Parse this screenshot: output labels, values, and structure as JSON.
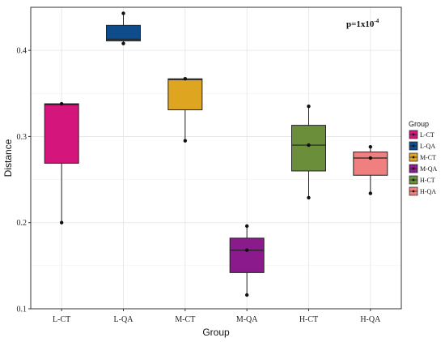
{
  "chart_data": {
    "type": "box",
    "xlabel": "Group",
    "ylabel": "Distance",
    "ylim": [
      0.1,
      0.45
    ],
    "yticks": [
      0.1,
      0.2,
      0.3,
      0.4
    ],
    "ytick_labels": [
      "0.1",
      "0.2",
      "0.3",
      "0.4"
    ],
    "grid": true,
    "legend": {
      "title": "Group",
      "position": "right"
    },
    "annotation": {
      "prefix": "p=1x10",
      "exponent": "-4"
    },
    "groups": [
      {
        "name": "L-CT",
        "color": "#D4167C",
        "min": 0.2,
        "q1": 0.269,
        "median": 0.337,
        "q3": 0.338,
        "max": 0.338,
        "points": [
          0.2,
          0.338
        ]
      },
      {
        "name": "L-QA",
        "color": "#0E4C8C",
        "min": 0.408,
        "q1": 0.411,
        "median": 0.413,
        "q3": 0.429,
        "max": 0.443,
        "points": [
          0.408,
          0.443
        ]
      },
      {
        "name": "M-CT",
        "color": "#DDA520",
        "min": 0.295,
        "q1": 0.331,
        "median": 0.366,
        "q3": 0.367,
        "max": 0.367,
        "points": [
          0.295,
          0.367
        ]
      },
      {
        "name": "M-QA",
        "color": "#8B1A8C",
        "min": 0.116,
        "q1": 0.142,
        "median": 0.168,
        "q3": 0.182,
        "max": 0.196,
        "points": [
          0.116,
          0.168,
          0.196
        ]
      },
      {
        "name": "H-CT",
        "color": "#6B8E3A",
        "min": 0.229,
        "q1": 0.26,
        "median": 0.29,
        "q3": 0.313,
        "max": 0.335,
        "points": [
          0.229,
          0.29,
          0.335
        ]
      },
      {
        "name": "H-QA",
        "color": "#F08080",
        "min": 0.234,
        "q1": 0.255,
        "median": 0.275,
        "q3": 0.282,
        "max": 0.288,
        "points": [
          0.234,
          0.275,
          0.288
        ]
      }
    ]
  }
}
